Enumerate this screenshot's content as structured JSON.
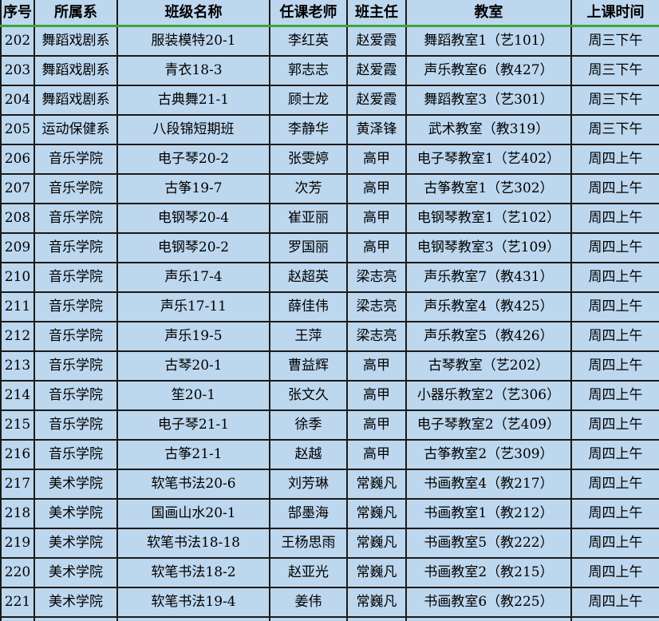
{
  "table": {
    "headers": [
      "序号",
      "所属系",
      "班级名称",
      "任课老师",
      "班主任",
      "教室",
      "上课时间"
    ],
    "column_keys": [
      "seq",
      "department",
      "class-name",
      "teacher",
      "head-teacher",
      "classroom",
      "time"
    ],
    "rows": [
      [
        "202",
        "舞蹈戏剧系",
        "服装模特20-1",
        "李红英",
        "赵爱霞",
        "舞蹈教室1（艺101）",
        "周三下午"
      ],
      [
        "203",
        "舞蹈戏剧系",
        "青衣18-3",
        "郭志志",
        "赵爱霞",
        "声乐教室6（教427）",
        "周三下午"
      ],
      [
        "204",
        "舞蹈戏剧系",
        "古典舞21-1",
        "顾士龙",
        "赵爱霞",
        "舞蹈教室3（艺301）",
        "周三下午"
      ],
      [
        "205",
        "运动保健系",
        "八段锦短期班",
        "李静华",
        "黄泽锋",
        "武术教室（教319）",
        "周三下午"
      ],
      [
        "206",
        "音乐学院",
        "电子琴20-2",
        "张雯婷",
        "高甲",
        "电子琴教室1（艺402）",
        "周四上午"
      ],
      [
        "207",
        "音乐学院",
        "古筝19-7",
        "次芳",
        "高甲",
        "古筝教室1（艺302）",
        "周四上午"
      ],
      [
        "208",
        "音乐学院",
        "电钢琴20-4",
        "崔亚丽",
        "高甲",
        "电钢琴教室1（艺102）",
        "周四上午"
      ],
      [
        "209",
        "音乐学院",
        "电钢琴20-2",
        "罗国丽",
        "高甲",
        "电钢琴教室3（艺109）",
        "周四上午"
      ],
      [
        "210",
        "音乐学院",
        "声乐17-4",
        "赵超英",
        "梁志亮",
        "声乐教室7（教431）",
        "周四上午"
      ],
      [
        "211",
        "音乐学院",
        "声乐17-11",
        "薛佳伟",
        "梁志亮",
        "声乐教室4（教425）",
        "周四上午"
      ],
      [
        "212",
        "音乐学院",
        "声乐19-5",
        "王萍",
        "梁志亮",
        "声乐教室5（教426）",
        "周四上午"
      ],
      [
        "213",
        "音乐学院",
        "古琴20-1",
        "曹益辉",
        "高甲",
        "古琴教室（艺202）",
        "周四上午"
      ],
      [
        "214",
        "音乐学院",
        "笙20-1",
        "张文久",
        "高甲",
        "小器乐教室2（艺306）",
        "周四上午"
      ],
      [
        "215",
        "音乐学院",
        "电子琴21-1",
        "徐季",
        "高甲",
        "电子琴教室2（艺409）",
        "周四上午"
      ],
      [
        "216",
        "音乐学院",
        "古筝21-1",
        "赵越",
        "高甲",
        "古筝教室2（艺309）",
        "周四上午"
      ],
      [
        "217",
        "美术学院",
        "软笔书法20-6",
        "刘芳琳",
        "常巍凡",
        "书画教室4（教217）",
        "周四上午"
      ],
      [
        "218",
        "美术学院",
        "国画山水20-1",
        "郜墨海",
        "常巍凡",
        "书画教室1（教212）",
        "周四上午"
      ],
      [
        "219",
        "美术学院",
        "软笔书法18-18",
        "王杨思雨",
        "常巍凡",
        "书画教室5（教222）",
        "周四上午"
      ],
      [
        "220",
        "美术学院",
        "软笔书法18-2",
        "赵亚光",
        "常巍凡",
        "书画教室2（教215）",
        "周四上午"
      ],
      [
        "221",
        "美术学院",
        "软笔书法19-4",
        "姜伟",
        "常巍凡",
        "书画教室6（教225）",
        "周四上午"
      ]
    ]
  },
  "colors": {
    "background": "#BDD7EE",
    "border": "#1A1A1A",
    "header_underline": "#3AA53A",
    "text": "#000000"
  }
}
